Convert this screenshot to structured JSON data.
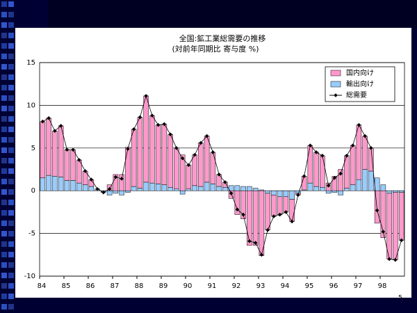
{
  "chart_data": {
    "type": "bar",
    "title": "全国:鉱工業総需要の推移",
    "subtitle": "(対前年同期比 寄与度 %)",
    "page_number": "5",
    "categories": [
      "84",
      null,
      null,
      null,
      "85",
      null,
      null,
      null,
      "86",
      null,
      null,
      null,
      "87",
      null,
      null,
      null,
      "88",
      null,
      null,
      null,
      "89",
      null,
      null,
      null,
      "90",
      null,
      null,
      null,
      "91",
      null,
      null,
      null,
      "92",
      null,
      null,
      null,
      "93",
      null,
      null,
      null,
      "94",
      null,
      null,
      null,
      "95",
      null,
      null,
      null,
      "96",
      null,
      null,
      null,
      "97",
      null,
      null,
      null,
      "98",
      null,
      null,
      null
    ],
    "series": [
      {
        "name": "国内向け",
        "color": "#ff99cc",
        "values": [
          6.6,
          6.7,
          5.3,
          6.0,
          3.6,
          3.6,
          2.7,
          1.6,
          0.8,
          0.0,
          0.0,
          0.7,
          1.9,
          1.9,
          5.1,
          6.7,
          8.3,
          10.1,
          7.9,
          6.9,
          7.1,
          6.2,
          4.8,
          4.2,
          2.8,
          3.6,
          5.1,
          5.4,
          3.7,
          1.4,
          0.6,
          -0.9,
          -2.8,
          -3.3,
          -6.4,
          -6.4,
          -7.6,
          -4.3,
          -2.5,
          -2.1,
          -1.8,
          -2.6,
          -0.2,
          1.6,
          4.4,
          4.0,
          3.7,
          0.9,
          1.7,
          2.5,
          3.8,
          4.6,
          6.4,
          3.9,
          2.7,
          -3.8,
          -5.5,
          -7.7,
          -7.9,
          -5.6
        ]
      },
      {
        "name": "輸出向け",
        "color": "#99ccff",
        "values": [
          1.5,
          1.8,
          1.7,
          1.6,
          1.2,
          1.2,
          0.9,
          0.7,
          0.5,
          0.2,
          -0.2,
          -0.5,
          -0.3,
          -0.5,
          -0.2,
          0.5,
          0.3,
          1.0,
          0.9,
          0.8,
          0.7,
          0.4,
          0.2,
          -0.4,
          0.2,
          0.6,
          0.5,
          1.0,
          0.8,
          0.5,
          0.4,
          0.6,
          0.6,
          0.5,
          0.5,
          0.3,
          0.1,
          -0.3,
          -0.5,
          -0.7,
          -0.7,
          -1.0,
          -0.3,
          0.1,
          0.9,
          0.5,
          0.4,
          -0.3,
          -0.2,
          -0.5,
          0.3,
          0.7,
          1.3,
          2.5,
          2.3,
          1.5,
          0.7,
          -0.3,
          -0.2,
          -0.2
        ]
      },
      {
        "name": "総需要",
        "color": "#000000",
        "values": [
          8.1,
          8.5,
          7.0,
          7.6,
          4.8,
          4.8,
          3.6,
          2.3,
          1.3,
          0.2,
          -0.2,
          0.2,
          1.6,
          1.4,
          4.9,
          7.2,
          8.6,
          11.1,
          8.8,
          7.7,
          7.8,
          6.6,
          5.0,
          3.8,
          3.0,
          4.2,
          5.6,
          6.4,
          4.5,
          1.9,
          1.0,
          -0.3,
          -2.2,
          -2.8,
          -5.9,
          -6.1,
          -7.5,
          -4.6,
          -3.0,
          -2.8,
          -2.5,
          -3.6,
          -0.5,
          1.7,
          5.3,
          4.5,
          4.1,
          0.6,
          1.5,
          2.0,
          4.1,
          5.3,
          7.7,
          6.4,
          5.0,
          -2.3,
          -4.8,
          -8.0,
          -8.1,
          -5.8
        ]
      }
    ],
    "ylim": [
      -10,
      15
    ],
    "yticks": [
      -10,
      -5,
      0,
      5,
      10,
      15
    ],
    "grid": true,
    "legend": "top-right"
  }
}
